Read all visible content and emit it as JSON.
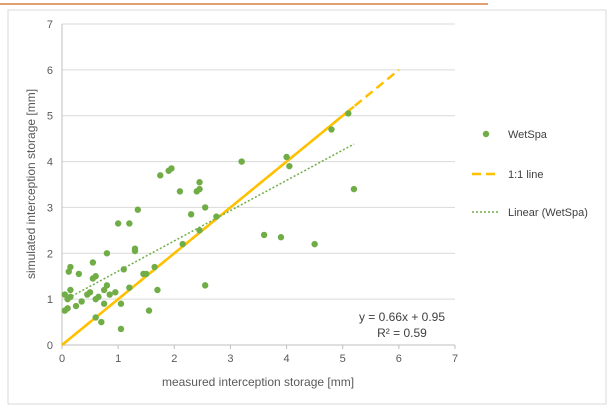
{
  "chart_data": {
    "type": "scatter",
    "title": "",
    "xlabel": "measured interception storage [mm]",
    "ylabel": "simulated interception storage [mm]",
    "xlim": [
      0,
      7
    ],
    "ylim": [
      0,
      7
    ],
    "xticks": [
      "0",
      "1",
      "2",
      "3",
      "4",
      "5",
      "6",
      "7"
    ],
    "yticks": [
      "0",
      "1",
      "2",
      "3",
      "4",
      "5",
      "6",
      "7"
    ],
    "grid": "horizontal",
    "legend_position": "right",
    "series": [
      {
        "name": "WetSpa",
        "kind": "scatter",
        "color": "#70ad47",
        "points": [
          [
            0.05,
            0.75
          ],
          [
            0.1,
            0.8
          ],
          [
            0.05,
            1.1
          ],
          [
            0.1,
            1.0
          ],
          [
            0.15,
            1.05
          ],
          [
            0.15,
            1.2
          ],
          [
            0.12,
            1.6
          ],
          [
            0.15,
            1.7
          ],
          [
            0.25,
            0.85
          ],
          [
            0.3,
            1.55
          ],
          [
            0.35,
            0.95
          ],
          [
            0.45,
            1.1
          ],
          [
            0.5,
            1.15
          ],
          [
            0.55,
            1.8
          ],
          [
            0.55,
            1.45
          ],
          [
            0.6,
            1.5
          ],
          [
            0.6,
            1.0
          ],
          [
            0.6,
            0.6
          ],
          [
            0.65,
            1.05
          ],
          [
            0.7,
            0.5
          ],
          [
            0.75,
            1.2
          ],
          [
            0.75,
            0.9
          ],
          [
            0.8,
            1.3
          ],
          [
            0.8,
            2.0
          ],
          [
            0.85,
            1.1
          ],
          [
            0.95,
            1.15
          ],
          [
            1.0,
            2.65
          ],
          [
            1.05,
            0.9
          ],
          [
            1.05,
            0.35
          ],
          [
            1.1,
            1.65
          ],
          [
            1.2,
            1.25
          ],
          [
            1.2,
            2.65
          ],
          [
            1.3,
            2.1
          ],
          [
            1.3,
            2.05
          ],
          [
            1.35,
            2.95
          ],
          [
            1.45,
            1.55
          ],
          [
            1.5,
            1.55
          ],
          [
            1.55,
            0.75
          ],
          [
            1.65,
            1.7
          ],
          [
            1.7,
            1.2
          ],
          [
            1.75,
            3.7
          ],
          [
            1.9,
            3.8
          ],
          [
            1.95,
            3.85
          ],
          [
            2.1,
            3.35
          ],
          [
            2.15,
            2.2
          ],
          [
            2.3,
            2.85
          ],
          [
            2.4,
            3.35
          ],
          [
            2.45,
            3.4
          ],
          [
            2.45,
            3.55
          ],
          [
            2.45,
            2.5
          ],
          [
            2.55,
            3.0
          ],
          [
            2.55,
            1.3
          ],
          [
            2.75,
            2.8
          ],
          [
            3.2,
            4.0
          ],
          [
            3.6,
            2.4
          ],
          [
            3.9,
            2.35
          ],
          [
            4.0,
            4.1
          ],
          [
            4.05,
            3.9
          ],
          [
            4.5,
            2.2
          ],
          [
            4.8,
            4.7
          ],
          [
            5.1,
            5.05
          ],
          [
            5.2,
            3.4
          ]
        ]
      },
      {
        "name": "1:1 line",
        "kind": "line",
        "style": "dashed",
        "color": "#ffc000",
        "points": [
          [
            0,
            0
          ],
          [
            6,
            6
          ]
        ]
      },
      {
        "name": "Linear (WetSpa)",
        "kind": "line",
        "style": "dotted",
        "color": "#70ad47",
        "points": [
          [
            0.05,
            0.983
          ],
          [
            5.2,
            4.382
          ]
        ]
      }
    ],
    "annotations": {
      "equation": "y = 0.66x + 0.95",
      "r_squared": "R² = 0.59"
    },
    "colors": {
      "solid_identity_line": "#ffc000",
      "top_accent": "#d98246",
      "frame_border": "#d9d9d9",
      "gridline": "#d9d9d9"
    }
  }
}
